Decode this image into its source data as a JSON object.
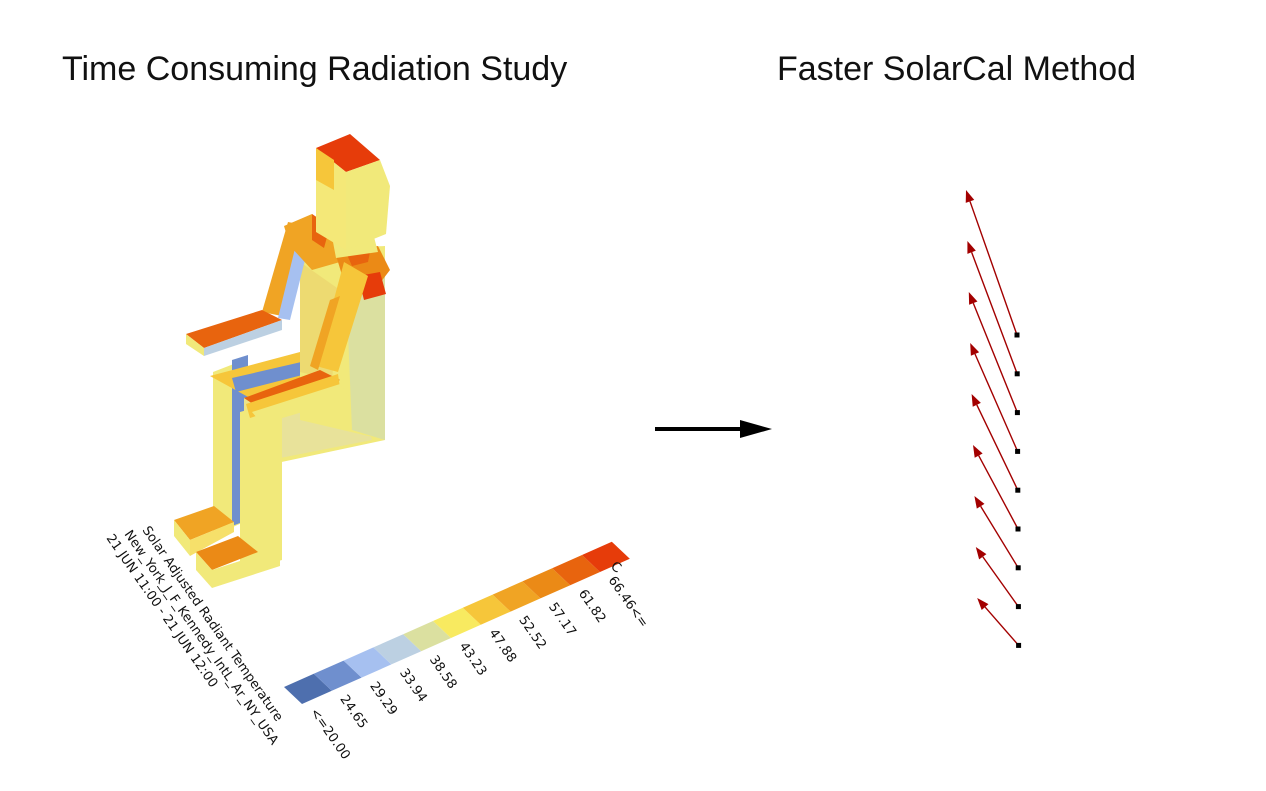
{
  "titles": {
    "left": "Time Consuming Radiation Study",
    "right": "Faster SolarCal Method"
  },
  "legend": {
    "heading_lines": [
      "Solar Adjusted Radiant Temperature",
      "New_York_J_F_Kennedy_IntL_Ar_NY_USA",
      "21 JUN 11:00 - 21 JUN 12:00"
    ],
    "unit": "C",
    "labels": [
      "<=20.00",
      "24.65",
      "29.29",
      "33.94",
      "38.58",
      "43.23",
      "47.88",
      "52.52",
      "57.17",
      "61.82",
      "66.46<="
    ],
    "colors": [
      "#4e6fae",
      "#6f8fce",
      "#a6c0f0",
      "#bcd0e2",
      "#dbe0a0",
      "#f8ea60",
      "#f6c63a",
      "#f0a424",
      "#eb8a16",
      "#e8640e",
      "#e63c0a"
    ]
  },
  "colors": {
    "vector": "#a30000",
    "arrow": "#000000"
  }
}
